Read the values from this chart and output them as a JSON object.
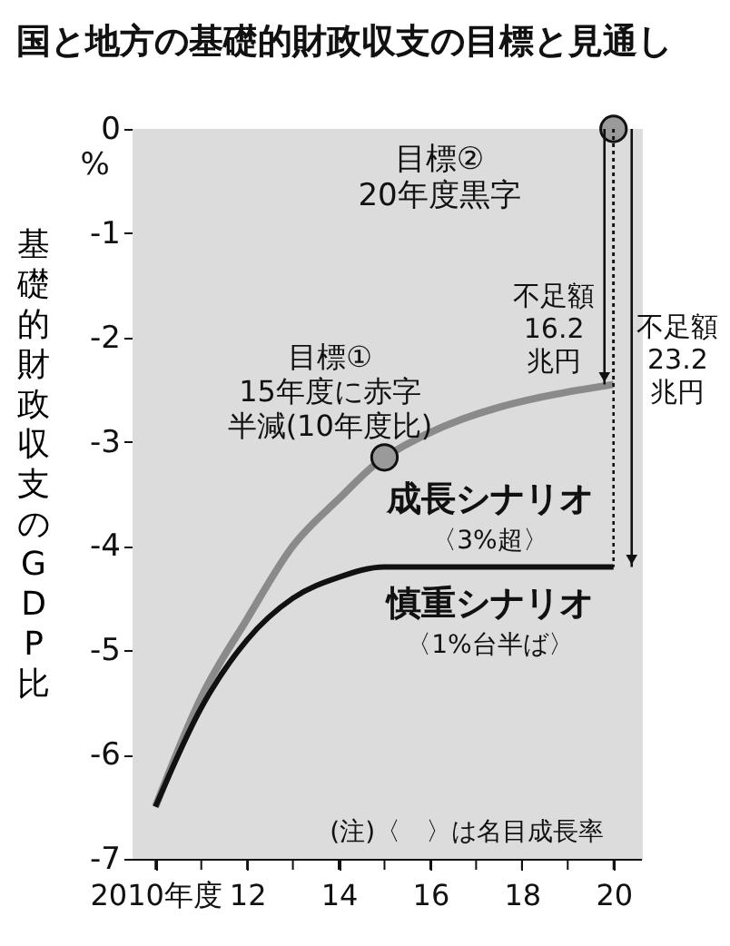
{
  "chart_data": {
    "type": "line",
    "title": "国と地方の基礎的財政収支の目標と見通し",
    "ylabel": "基礎的財政収支のGDP比",
    "x": [
      2010,
      2011,
      2012,
      2013,
      2014,
      2015,
      2020
    ],
    "series": [
      {
        "name": "成長シナリオ",
        "color": "#8a8a8a",
        "values": [
          -6.5,
          -5.45,
          -4.7,
          -4.0,
          -3.55,
          -3.15,
          -2.45
        ]
      },
      {
        "name": "慎重シナリオ",
        "color": "#111111",
        "values": [
          -6.5,
          -5.55,
          -4.9,
          -4.5,
          -4.3,
          -4.2,
          -4.2
        ]
      },
      {
        "type": "scatter",
        "color": "#9a9a9a",
        "x": [
          2015,
          2020
        ],
        "values": [
          -3.15,
          0
        ],
        "marker": "circle"
      }
    ],
    "xlim": [
      2009.5,
      2020.6
    ],
    "xticks": [
      {
        "value": 2010,
        "label": "2010年度"
      },
      {
        "value": 2011,
        "label": null
      },
      {
        "value": 2012,
        "label": "12"
      },
      {
        "value": 2013,
        "label": null
      },
      {
        "value": 2014,
        "label": "14"
      },
      {
        "value": 2015,
        "label": null
      },
      {
        "value": 2016,
        "label": "16"
      },
      {
        "value": 2017,
        "label": null
      },
      {
        "value": 2018,
        "label": "18"
      },
      {
        "value": 2019,
        "label": null
      },
      {
        "value": 2020,
        "label": "20"
      }
    ],
    "ylim": [
      -7,
      0
    ],
    "yticks": [
      -7,
      -6,
      -5,
      -4,
      -3,
      -2,
      -1,
      0
    ],
    "line_style": "solid",
    "annotations": [
      "目標②20年度黒字",
      {
        "text": "目標①15年度に赤字半減(10年度比)",
        "x": 2015,
        "y": -3.15
      },
      "不足額16.2兆円",
      "不足額23.2兆円",
      "〈3%超〉",
      "〈1%台半ば〉",
      "(注)〈　〉は名目成長率",
      "%"
    ]
  }
}
